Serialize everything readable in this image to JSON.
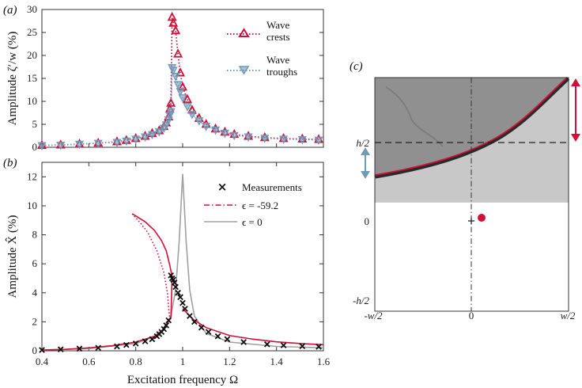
{
  "colors": {
    "crest": "#d0103a",
    "trough": "#6f9bb8",
    "nonlinear": "#d0103a",
    "linear": "#a0a0a0",
    "measure": "#111111",
    "photo_dark": "#6a6a6a",
    "photo_light": "#b8b8b8"
  },
  "chart_data": [
    {
      "panel": "(a)",
      "type": "scatter",
      "ylabel": "Amplitude ζ′/w (%)",
      "xlim": [
        0.4,
        1.6
      ],
      "ylim": [
        0,
        30
      ],
      "yticks": [
        0,
        5,
        10,
        15,
        20,
        25,
        30
      ],
      "grid": false,
      "legend_position": "top-right",
      "series": [
        {
          "name": "Wave crests",
          "marker": "triangle-up",
          "line": "dotted",
          "color": "#d0103a",
          "x": [
            0.4,
            0.48,
            0.56,
            0.64,
            0.72,
            0.76,
            0.8,
            0.84,
            0.87,
            0.9,
            0.92,
            0.93,
            0.94,
            0.945,
            0.95,
            0.955,
            0.96,
            0.97,
            0.98,
            0.99,
            1.0,
            1.02,
            1.04,
            1.07,
            1.1,
            1.14,
            1.18,
            1.22,
            1.28,
            1.35,
            1.43,
            1.51,
            1.58
          ],
          "y": [
            0.4,
            0.5,
            0.7,
            0.9,
            1.2,
            1.5,
            1.9,
            2.4,
            3.0,
            3.6,
            4.5,
            5.3,
            6.6,
            8.3,
            9.6,
            28.3,
            27.0,
            25.4,
            20.3,
            16.2,
            13.1,
            10.4,
            8.1,
            6.3,
            5.0,
            4.0,
            3.3,
            2.8,
            2.4,
            2.1,
            1.9,
            1.8,
            1.7
          ]
        },
        {
          "name": "Wave troughs",
          "marker": "triangle-down",
          "line": "dotted",
          "color": "#6f9bb8",
          "x": [
            0.4,
            0.48,
            0.56,
            0.64,
            0.72,
            0.76,
            0.8,
            0.84,
            0.87,
            0.9,
            0.92,
            0.93,
            0.94,
            0.945,
            0.95,
            0.955,
            0.96,
            0.97,
            0.98,
            0.99,
            1.0,
            1.02,
            1.04,
            1.07,
            1.1,
            1.14,
            1.18,
            1.22,
            1.28,
            1.35,
            1.43,
            1.51,
            1.58
          ],
          "y": [
            0.4,
            0.5,
            0.7,
            0.9,
            1.1,
            1.4,
            1.8,
            2.3,
            2.8,
            3.4,
            4.2,
            4.9,
            6.0,
            7.0,
            7.8,
            17.4,
            16.8,
            15.5,
            13.7,
            12.2,
            10.8,
            8.9,
            7.2,
            5.8,
            4.6,
            3.8,
            3.1,
            2.6,
            2.3,
            2.0,
            1.8,
            1.7,
            1.6
          ]
        }
      ]
    },
    {
      "panel": "(b)",
      "type": "line",
      "xlabel": "Excitation frequency Ω",
      "ylabel": "Amplitude X̂ (%)",
      "xlim": [
        0.4,
        1.6
      ],
      "ylim": [
        0,
        13
      ],
      "xticks": [
        0.4,
        0.6,
        0.8,
        1.0,
        1.2,
        1.4,
        1.6
      ],
      "xtick_labels": [
        "0.4",
        "0.6",
        "0.8",
        "1",
        "1.2",
        "1.4",
        "1.6"
      ],
      "yticks": [
        0,
        2,
        4,
        6,
        8,
        10,
        12
      ],
      "grid": false,
      "legend_position": "top-right",
      "series": [
        {
          "name": "Measurements",
          "marker": "x",
          "color": "#111111",
          "x": [
            0.4,
            0.48,
            0.56,
            0.64,
            0.72,
            0.76,
            0.8,
            0.84,
            0.87,
            0.89,
            0.9,
            0.91,
            0.92,
            0.93,
            0.94,
            0.95,
            0.955,
            0.96,
            0.965,
            0.97,
            0.98,
            0.99,
            1.0,
            1.01,
            1.03,
            1.05,
            1.08,
            1.11,
            1.15,
            1.19,
            1.26,
            1.36,
            1.43,
            1.51,
            1.58
          ],
          "y": [
            0.05,
            0.1,
            0.15,
            0.2,
            0.3,
            0.4,
            0.5,
            0.65,
            0.8,
            1.0,
            1.15,
            1.3,
            1.5,
            1.75,
            2.1,
            5.2,
            5.0,
            4.9,
            4.7,
            4.4,
            4.0,
            3.7,
            3.3,
            2.9,
            2.4,
            2.0,
            1.6,
            1.3,
            1.0,
            0.8,
            0.6,
            0.45,
            0.38,
            0.32,
            0.28
          ]
        },
        {
          "name": "ϵ = -59.2",
          "line": "dash-dot",
          "color": "#d0103a",
          "note_branches": "stable solid, unstable dotted",
          "x": [
            0.4,
            0.5,
            0.6,
            0.7,
            0.8,
            0.88,
            0.92,
            0.95,
            0.97,
            1.0,
            1.05,
            1.1,
            1.2,
            1.3,
            1.4,
            1.5,
            1.6
          ],
          "y": [
            0.05,
            0.1,
            0.2,
            0.35,
            0.6,
            1.0,
            1.5,
            2.3,
            3.5,
            2.9,
            2.1,
            1.6,
            1.05,
            0.8,
            0.62,
            0.5,
            0.42
          ]
        },
        {
          "name": "ϵ = 0",
          "line": "solid",
          "color": "#a0a0a0",
          "x": [
            0.4,
            0.6,
            0.8,
            0.9,
            0.95,
            0.97,
            0.985,
            1.0,
            1.015,
            1.03,
            1.05,
            1.1,
            1.2,
            1.4,
            1.6
          ],
          "y": [
            0.05,
            0.15,
            0.5,
            1.1,
            2.4,
            4.2,
            7.5,
            12.2,
            7.5,
            4.2,
            2.4,
            1.2,
            0.6,
            0.3,
            0.2
          ]
        }
      ]
    }
  ],
  "panel_c": {
    "label": "(c)",
    "y_labels": [
      "h/2",
      "0",
      "-h/2"
    ],
    "x_labels": [
      "-w/2",
      "0",
      "w/2"
    ],
    "marker": "red-dot"
  }
}
